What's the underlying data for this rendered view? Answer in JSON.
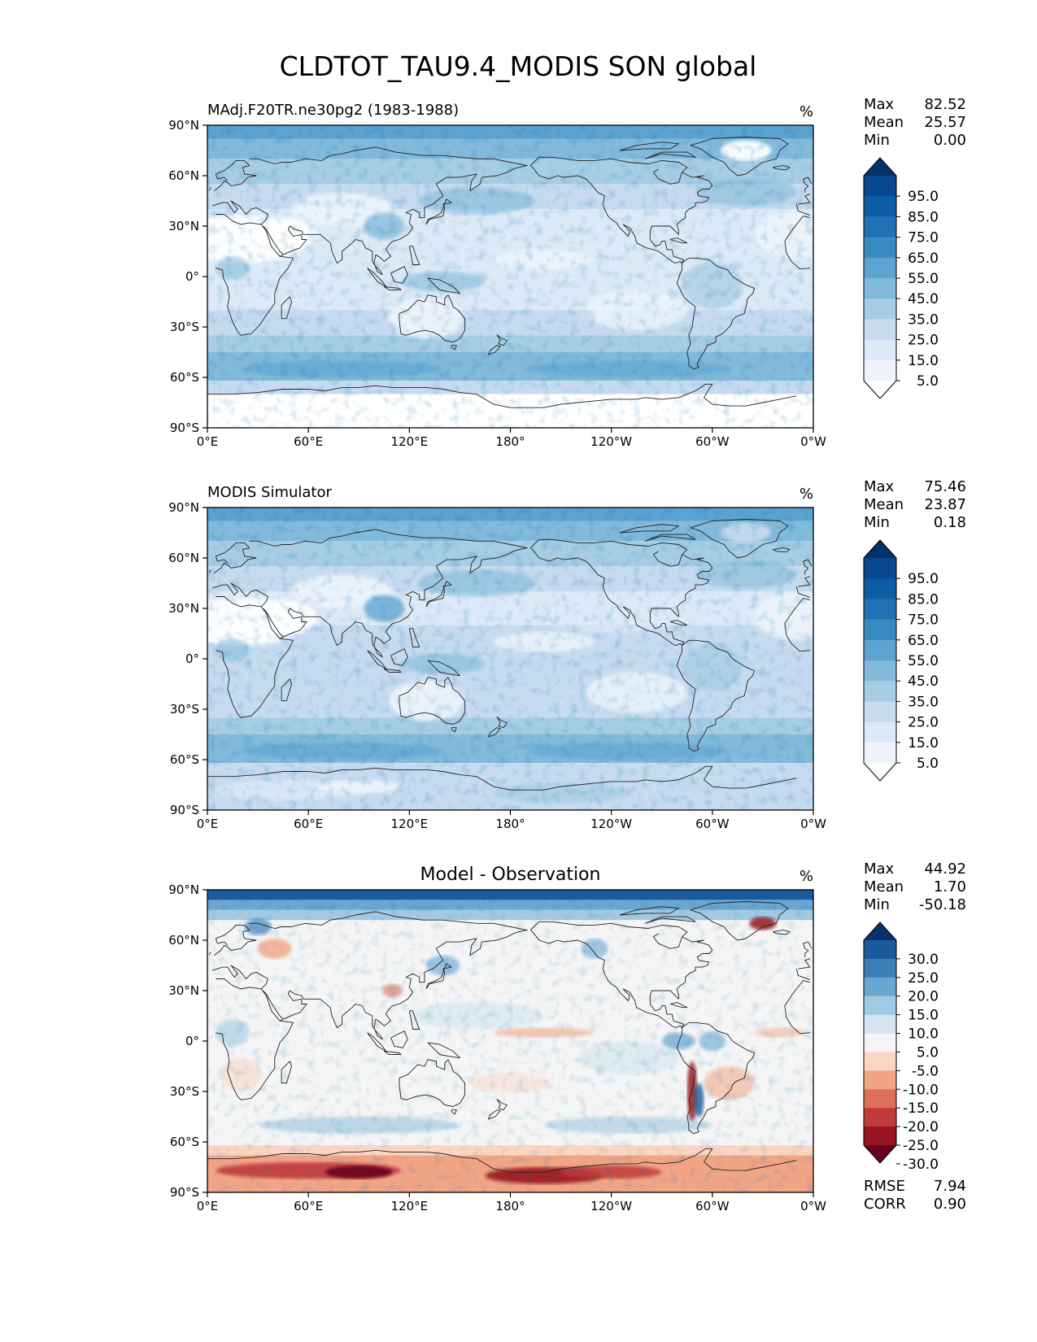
{
  "chart_data": {
    "type": "heatmap",
    "title": "CLDTOT_TAU9.4_MODIS SON global",
    "x_tick_labels": [
      "0°E",
      "60°E",
      "120°E",
      "180°",
      "120°W",
      "60°W",
      "0°W"
    ],
    "y_tick_labels": [
      "90°N",
      "60°N",
      "30°N",
      "0°",
      "30°S",
      "60°S",
      "90°S"
    ],
    "x_range": [
      0,
      360
    ],
    "y_range": [
      -90,
      90
    ],
    "panels": [
      {
        "id": "test",
        "left_title": "MAdj.F20TR.ne30pg2 (1983-1988)",
        "center_title": "",
        "units": "%",
        "stats": [
          {
            "label": "Max",
            "value": "82.52"
          },
          {
            "label": "Mean",
            "value": "25.57"
          },
          {
            "label": "Min",
            "value": "0.00"
          }
        ],
        "colorbar_labels": [
          "95.0",
          "85.0",
          "75.0",
          "65.0",
          "55.0",
          "45.0",
          "35.0",
          "25.0",
          "15.0",
          "5.0"
        ],
        "colorbar_colors": [
          "#08306b",
          "#08478d",
          "#0d5ca6",
          "#2271b5",
          "#3a8ac2",
          "#5ba3d0",
          "#81badb",
          "#a6cde4",
          "#c6dbef",
          "#dce9f6",
          "#edf4fb",
          "#ffffff"
        ],
        "footer_stats": []
      },
      {
        "id": "reference",
        "left_title": "MODIS Simulator",
        "center_title": "",
        "units": "%",
        "stats": [
          {
            "label": "Max",
            "value": "75.46"
          },
          {
            "label": "Mean",
            "value": "23.87"
          },
          {
            "label": "Min",
            "value": "0.18"
          }
        ],
        "colorbar_labels": [
          "95.0",
          "85.0",
          "75.0",
          "65.0",
          "55.0",
          "45.0",
          "35.0",
          "25.0",
          "15.0",
          "5.0"
        ],
        "colorbar_colors": [
          "#08306b",
          "#08478d",
          "#0d5ca6",
          "#2271b5",
          "#3a8ac2",
          "#5ba3d0",
          "#81badb",
          "#a6cde4",
          "#c6dbef",
          "#dce9f6",
          "#edf4fb",
          "#ffffff"
        ],
        "footer_stats": []
      },
      {
        "id": "difference",
        "left_title": "",
        "center_title": "Model - Observation",
        "units": "%",
        "stats": [
          {
            "label": "Max",
            "value": "44.92"
          },
          {
            "label": "Mean",
            "value": "1.70"
          },
          {
            "label": "Min",
            "value": "-50.18"
          }
        ],
        "colorbar_labels": [
          "30.0",
          "25.0",
          "20.0",
          "15.0",
          "10.0",
          "5.0",
          "-5.0",
          "-10.0",
          "-15.0",
          "-20.0",
          "-25.0",
          "-30.0"
        ],
        "colorbar_colors": [
          "#08306b",
          "#1b5a9b",
          "#3b7fb9",
          "#6aa7d1",
          "#a2c9e2",
          "#d2e5f0",
          "#f5f5f5",
          "#fbd5c3",
          "#f2a585",
          "#de6f5a",
          "#c13b3c",
          "#99141f",
          "#67001f"
        ],
        "footer_stats": [
          {
            "label": "RMSE",
            "value": "7.94"
          },
          {
            "label": "CORR",
            "value": "0.90"
          }
        ]
      }
    ]
  }
}
